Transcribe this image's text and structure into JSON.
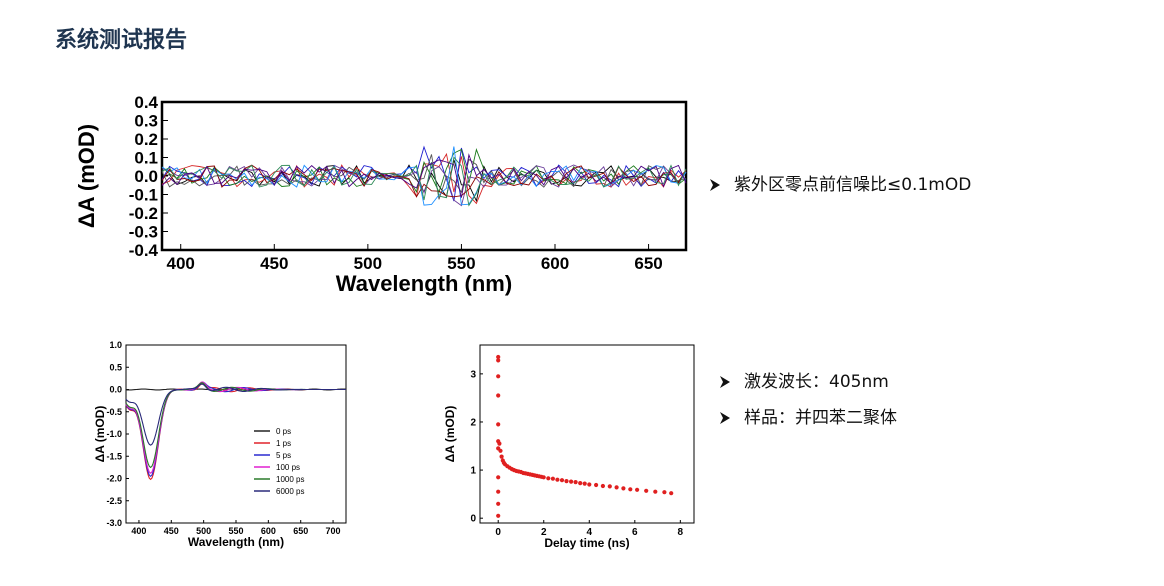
{
  "page": {
    "title": "系统测试报告"
  },
  "bullets": [
    {
      "text": "紫外区零点前信噪比≤0.1mOD"
    },
    {
      "text": "激发波长：405nm"
    },
    {
      "text": "样品：并四苯二聚体"
    }
  ],
  "chart_data": [
    {
      "type": "line",
      "xlabel": "Wavelength (nm)",
      "ylabel": "ΔA (mOD)",
      "xlim": [
        390,
        670
      ],
      "ylim": [
        -0.4,
        0.4
      ],
      "xticks": [
        400,
        450,
        500,
        550,
        600,
        650
      ],
      "yticks": [
        0.4,
        0.3,
        0.2,
        0.1,
        0.0,
        -0.1,
        -0.2,
        -0.3,
        -0.4
      ],
      "grid": false,
      "series_colors": [
        "#000000",
        "#d62728",
        "#1f1fd0",
        "#1a7a1a",
        "#6a3d9a",
        "#555555",
        "#1e90ff",
        "#8b0000",
        "#2e8b57",
        "#4b0082"
      ],
      "noise_amplitude": 0.06,
      "feature_region": [
        525,
        560
      ],
      "feature_amplitude": 0.16
    },
    {
      "type": "line",
      "xlabel": "Wavelength (nm)",
      "ylabel": "ΔA (mOD)",
      "xlim": [
        380,
        720
      ],
      "ylim": [
        -3.0,
        1.0
      ],
      "xticks": [
        400,
        450,
        500,
        550,
        600,
        650,
        700
      ],
      "yticks": [
        1.0,
        0.5,
        0.0,
        -0.5,
        -1.0,
        -1.5,
        -2.0,
        -2.5,
        -3.0
      ],
      "legend_position": "lower-right",
      "series": [
        {
          "name": "0 ps",
          "color": "#222222",
          "min": -0.05
        },
        {
          "name": "1 ps",
          "color": "#e0222a",
          "min": -2.02
        },
        {
          "name": "5 ps",
          "color": "#2a2ad0",
          "min": -1.95
        },
        {
          "name": "100 ps",
          "color": "#e020d0",
          "min": -1.88
        },
        {
          "name": "1000 ps",
          "color": "#2a7a2a",
          "min": -1.75
        },
        {
          "name": "6000 ps",
          "color": "#2a2a7a",
          "min": -1.25
        }
      ]
    },
    {
      "type": "scatter",
      "xlabel": "Delay time (ns)",
      "ylabel": "ΔA (mOD)",
      "xlim": [
        -0.8,
        8.6
      ],
      "ylim": [
        -0.1,
        3.6
      ],
      "xticks": [
        0,
        2,
        4,
        6,
        8
      ],
      "yticks": [
        3,
        2,
        1,
        0
      ],
      "color": "#e02020",
      "x": [
        0,
        0,
        0,
        0,
        0,
        0,
        0,
        0,
        0,
        0,
        0,
        0.05,
        0.1,
        0.15,
        0.2,
        0.25,
        0.3,
        0.4,
        0.5,
        0.6,
        0.7,
        0.8,
        0.9,
        1.0,
        1.1,
        1.2,
        1.3,
        1.4,
        1.5,
        1.6,
        1.7,
        1.8,
        1.9,
        2.0,
        2.2,
        2.4,
        2.6,
        2.8,
        3.0,
        3.2,
        3.4,
        3.6,
        3.8,
        4.0,
        4.3,
        4.6,
        4.9,
        5.2,
        5.5,
        5.8,
        6.1,
        6.5,
        6.9,
        7.3,
        7.6
      ],
      "y": [
        3.35,
        3.28,
        2.95,
        2.55,
        1.95,
        1.6,
        1.45,
        0.85,
        0.55,
        0.3,
        0.05,
        1.55,
        1.4,
        1.28,
        1.2,
        1.15,
        1.12,
        1.08,
        1.05,
        1.02,
        1.0,
        0.98,
        0.97,
        0.96,
        0.94,
        0.93,
        0.92,
        0.91,
        0.9,
        0.89,
        0.88,
        0.87,
        0.86,
        0.85,
        0.83,
        0.82,
        0.8,
        0.79,
        0.77,
        0.76,
        0.75,
        0.73,
        0.72,
        0.7,
        0.69,
        0.67,
        0.66,
        0.64,
        0.62,
        0.6,
        0.59,
        0.57,
        0.55,
        0.54,
        0.52
      ]
    }
  ]
}
